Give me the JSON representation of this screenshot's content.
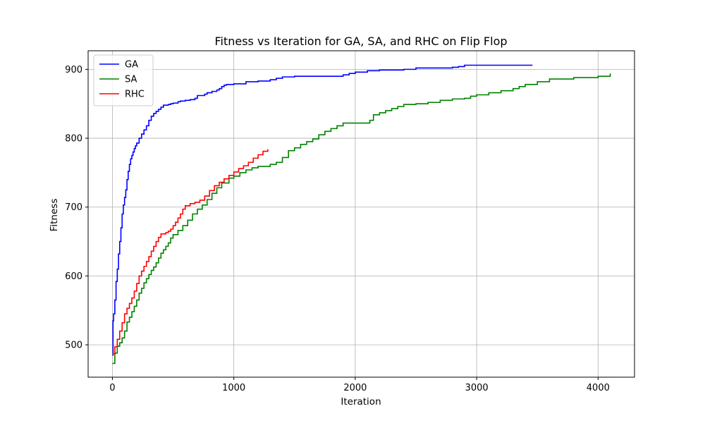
{
  "chart_data": {
    "type": "line",
    "title": "Fitness vs Iteration for GA, SA, and RHC on Flip Flop",
    "xlabel": "Iteration",
    "ylabel": "Fitness",
    "xlim": [
      -200,
      4300
    ],
    "ylim": [
      453,
      927
    ],
    "xticks": [
      0,
      1000,
      2000,
      3000,
      4000
    ],
    "yticks": [
      500,
      600,
      700,
      800,
      900
    ],
    "xtick_labels": [
      "0",
      "1000",
      "2000",
      "3000",
      "4000"
    ],
    "ytick_labels": [
      "500",
      "600",
      "700",
      "800",
      "900"
    ],
    "grid": true,
    "legend_position": "upper left",
    "series": [
      {
        "name": "GA",
        "color": "#0000ff",
        "x": [
          0,
          5,
          10,
          20,
          30,
          40,
          50,
          60,
          70,
          80,
          90,
          100,
          110,
          120,
          130,
          140,
          150,
          160,
          170,
          180,
          190,
          200,
          220,
          240,
          260,
          280,
          300,
          320,
          340,
          360,
          380,
          400,
          420,
          440,
          460,
          480,
          500,
          540,
          560,
          580,
          600,
          640,
          680,
          700,
          740,
          760,
          780,
          820,
          860,
          880,
          900,
          920,
          940,
          1000,
          1100,
          1200,
          1300,
          1350,
          1400,
          1500,
          1600,
          1900,
          1950,
          2000,
          2100,
          2200,
          2400,
          2500,
          2600,
          2800,
          2850,
          2900,
          3000,
          3200,
          3460
        ],
        "y": [
          485,
          535,
          545,
          565,
          592,
          610,
          632,
          650,
          670,
          690,
          703,
          714,
          725,
          740,
          752,
          762,
          770,
          775,
          780,
          785,
          789,
          793,
          800,
          806,
          812,
          818,
          826,
          832,
          836,
          839,
          842,
          845,
          848,
          848,
          849,
          850,
          851,
          853,
          854,
          854,
          855,
          856,
          858,
          862,
          862,
          864,
          866,
          868,
          870,
          872,
          875,
          877,
          878,
          879,
          882,
          883,
          885,
          887,
          889,
          890,
          890,
          892,
          894,
          896,
          898,
          899,
          900,
          902,
          902,
          903,
          904,
          906,
          906,
          906,
          906
        ]
      },
      {
        "name": "SA",
        "color": "#008000",
        "x": [
          0,
          20,
          40,
          60,
          80,
          100,
          120,
          140,
          160,
          180,
          200,
          220,
          240,
          260,
          280,
          300,
          320,
          340,
          360,
          380,
          400,
          420,
          440,
          460,
          480,
          500,
          540,
          580,
          620,
          660,
          700,
          740,
          780,
          820,
          860,
          900,
          960,
          1000,
          1050,
          1100,
          1150,
          1200,
          1300,
          1350,
          1400,
          1450,
          1500,
          1550,
          1600,
          1650,
          1700,
          1750,
          1800,
          1850,
          1900,
          2000,
          2100,
          2120,
          2150,
          2200,
          2250,
          2300,
          2350,
          2400,
          2500,
          2600,
          2700,
          2800,
          2900,
          2950,
          3000,
          3100,
          3200,
          3300,
          3350,
          3400,
          3500,
          3600,
          3800,
          4000,
          4100
        ],
        "y": [
          473,
          488,
          498,
          503,
          510,
          520,
          533,
          540,
          548,
          556,
          565,
          575,
          582,
          590,
          596,
          602,
          608,
          613,
          619,
          626,
          633,
          638,
          643,
          648,
          655,
          660,
          666,
          673,
          681,
          690,
          697,
          703,
          711,
          720,
          728,
          735,
          742,
          745,
          750,
          754,
          757,
          759,
          762,
          765,
          772,
          782,
          786,
          791,
          795,
          799,
          805,
          810,
          814,
          818,
          822,
          822,
          822,
          826,
          834,
          837,
          840,
          843,
          846,
          849,
          850,
          852,
          855,
          857,
          858,
          861,
          863,
          866,
          869,
          872,
          875,
          878,
          882,
          886,
          888,
          890,
          894
        ]
      },
      {
        "name": "RHC",
        "color": "#ff0000",
        "x": [
          0,
          20,
          40,
          60,
          80,
          100,
          120,
          140,
          160,
          180,
          200,
          220,
          240,
          260,
          280,
          300,
          320,
          340,
          360,
          380,
          400,
          440,
          460,
          480,
          500,
          520,
          540,
          560,
          580,
          600,
          640,
          680,
          720,
          760,
          800,
          840,
          880,
          920,
          960,
          1000,
          1040,
          1080,
          1120,
          1160,
          1200,
          1240,
          1280
        ],
        "y": [
          487,
          497,
          508,
          520,
          532,
          545,
          553,
          560,
          568,
          578,
          589,
          600,
          607,
          614,
          621,
          628,
          636,
          643,
          650,
          656,
          661,
          663,
          665,
          668,
          673,
          678,
          684,
          690,
          697,
          702,
          705,
          707,
          710,
          716,
          724,
          731,
          736,
          741,
          746,
          751,
          756,
          760,
          765,
          771,
          776,
          781,
          784
        ]
      }
    ]
  }
}
